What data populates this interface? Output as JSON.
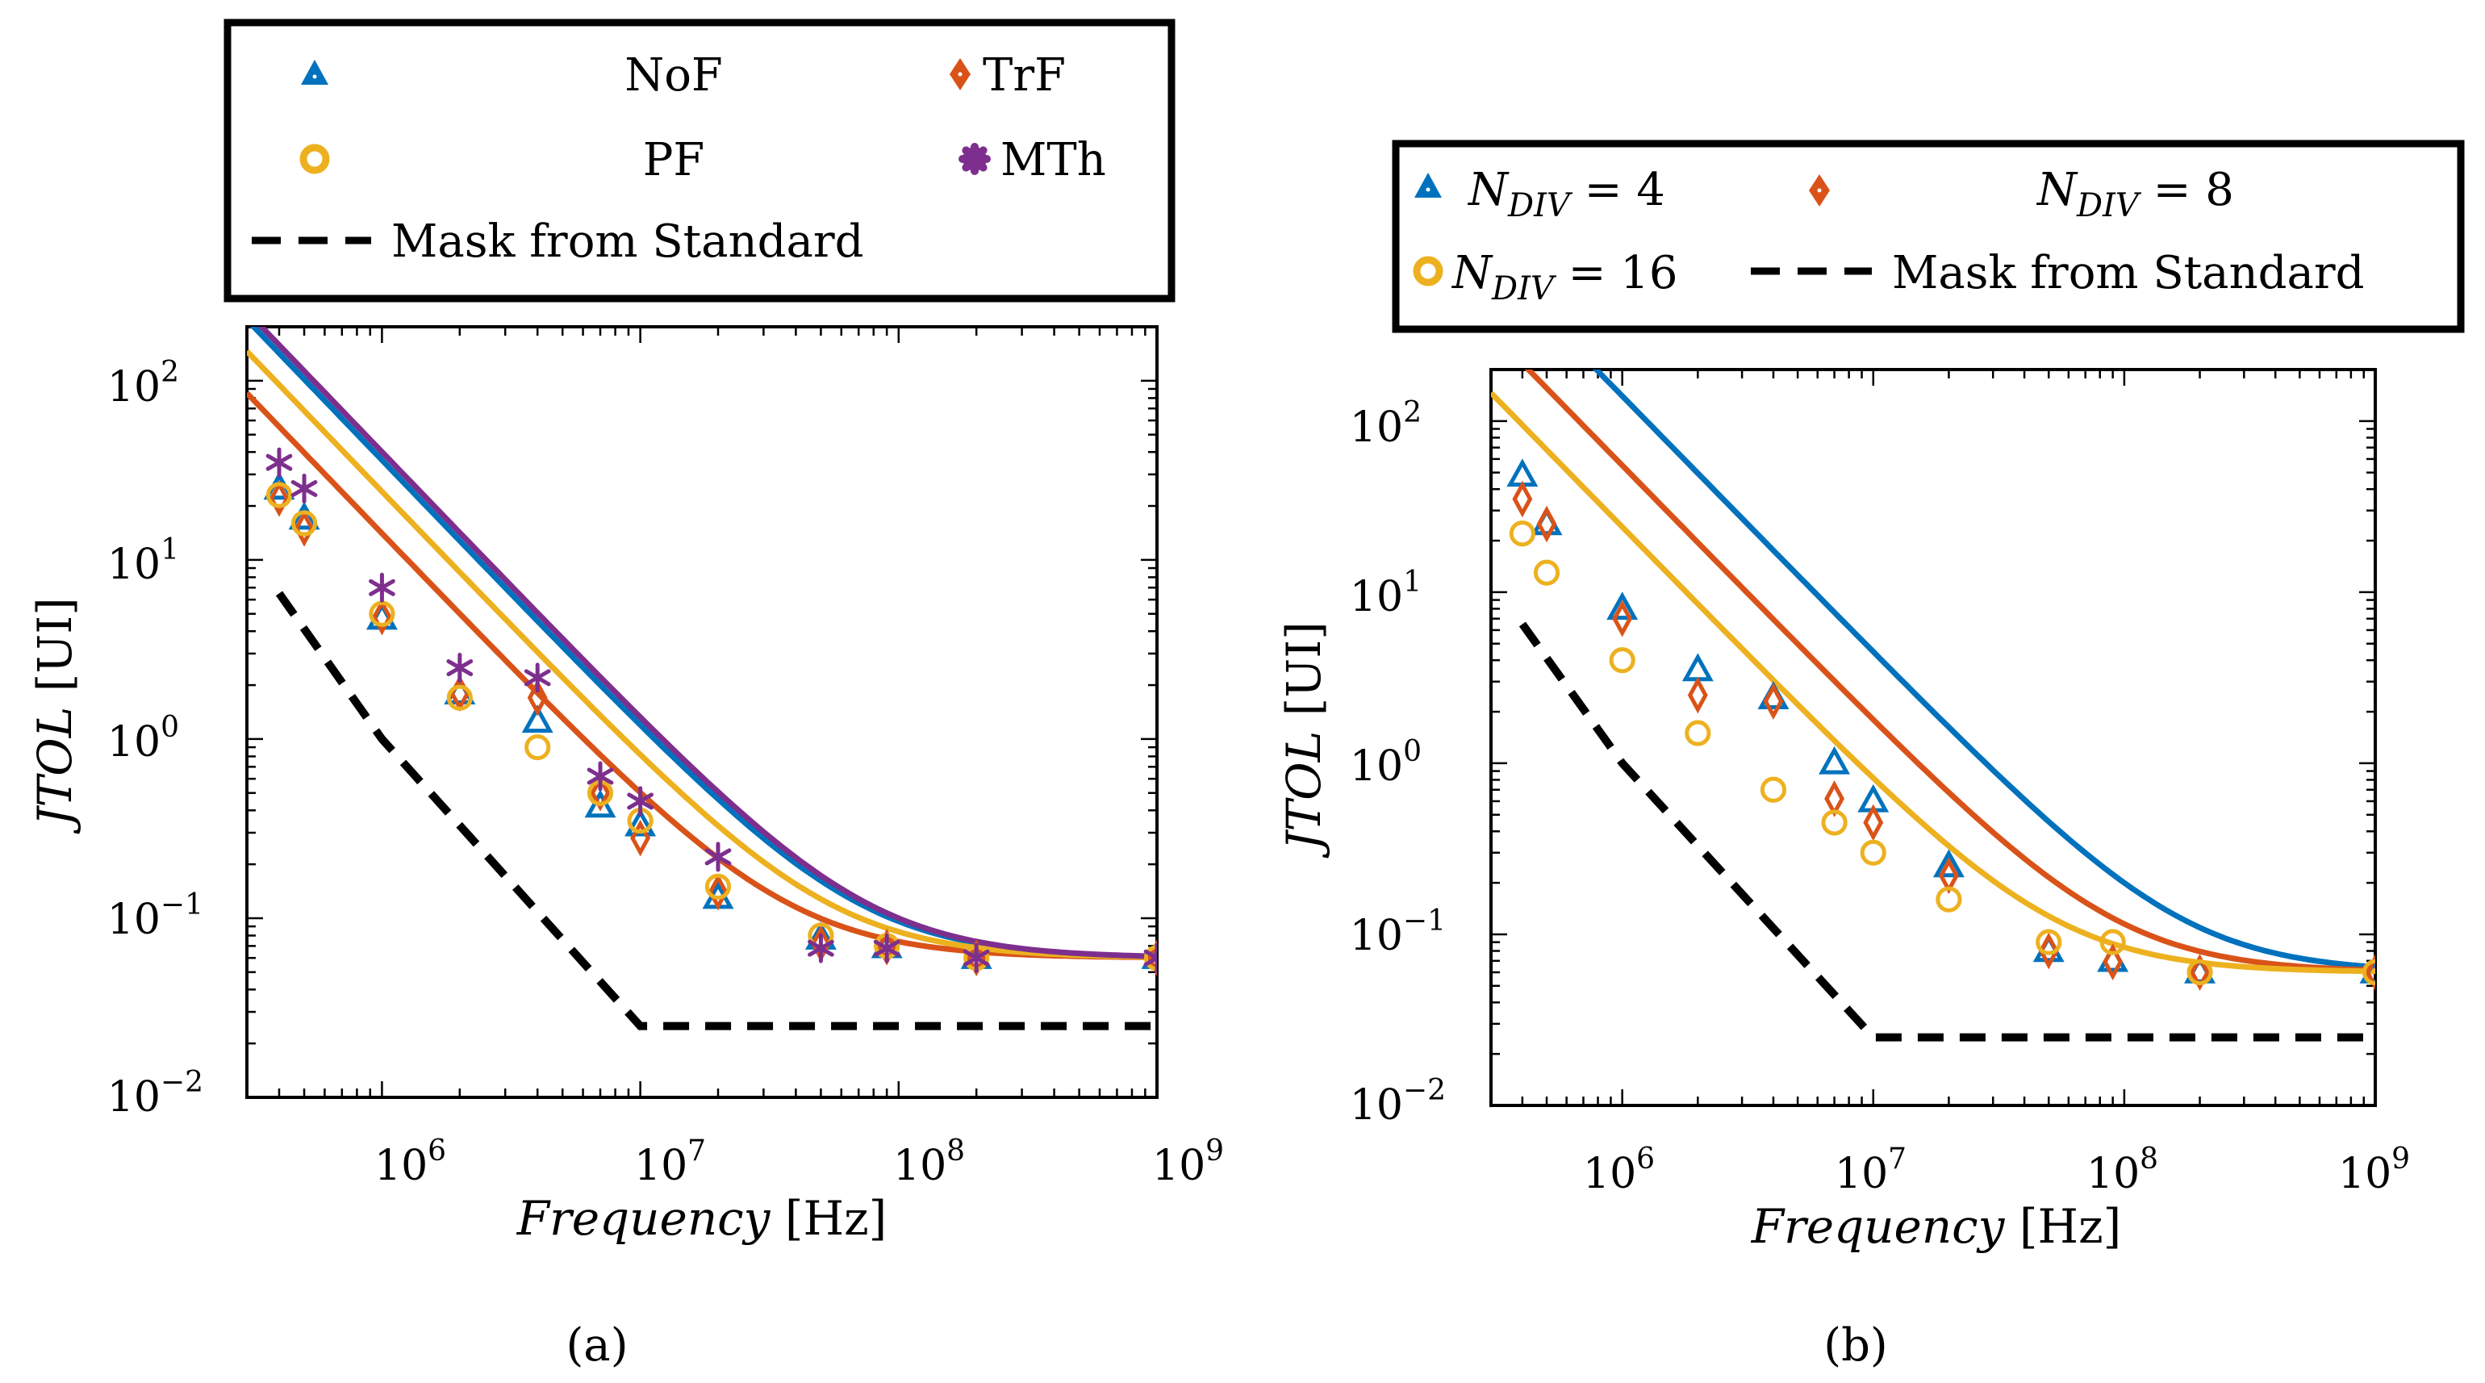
{
  "colors": {
    "blue": "#0072BD",
    "orange": "#D95319",
    "yellow": "#EDB120",
    "purple": "#7E2F8E",
    "mask": "#000000"
  },
  "chart_data": [
    {
      "id": "a",
      "type": "scatter",
      "caption": "(a)",
      "xlabel": "Frequency",
      "xunit": "[Hz]",
      "ylabel": "JTOL",
      "yunit": "[UI]",
      "xscale": "log",
      "yscale": "log",
      "xlim": [
        300000,
        1000000000
      ],
      "ylim": [
        0.01,
        200
      ],
      "xticks": [
        {
          "base": "10",
          "exp": "6"
        },
        {
          "base": "10",
          "exp": "7"
        },
        {
          "base": "10",
          "exp": "8"
        },
        {
          "base": "10",
          "exp": "9"
        }
      ],
      "yticks": [
        {
          "base": "10",
          "exp": "−2"
        },
        {
          "base": "10",
          "exp": "−1"
        },
        {
          "base": "10",
          "exp": "0"
        },
        {
          "base": "10",
          "exp": "1"
        },
        {
          "base": "10",
          "exp": "2"
        }
      ],
      "grid": false,
      "legend_position": "top-center",
      "legend": [
        {
          "label": "NoF",
          "marker": "triangle",
          "color": "#0072BD"
        },
        {
          "label": "TrF",
          "marker": "diamond",
          "color": "#D95319"
        },
        {
          "label": "PF",
          "marker": "circle",
          "color": "#EDB120"
        },
        {
          "label": "MTh",
          "marker": "star",
          "color": "#7E2F8E"
        },
        {
          "label": "Mask from Standard",
          "marker": "dashed",
          "color": "#000000"
        }
      ],
      "series": [
        {
          "name": "NoF",
          "marker": "triangle",
          "color": "#0072BD",
          "x": [
            400000,
            500000,
            1000000,
            2000000,
            4000000,
            7000000,
            10000000,
            20000000,
            50000000,
            90000000,
            200000000,
            1000000000
          ],
          "y": [
            25,
            17,
            4.7,
            1.8,
            1.25,
            0.42,
            0.33,
            0.13,
            0.077,
            0.069,
            0.06,
            0.06
          ],
          "fit": {
            "floor": 0.06,
            "A": 36
          }
        },
        {
          "name": "TrF",
          "marker": "diamond",
          "color": "#D95319",
          "x": [
            400000,
            500000,
            1000000,
            2000000,
            4000000,
            7000000,
            10000000,
            20000000,
            50000000,
            90000000,
            200000000,
            1000000000
          ],
          "y": [
            22,
            15,
            4.8,
            1.8,
            1.7,
            0.5,
            0.28,
            0.14,
            0.072,
            0.069,
            0.06,
            0.06
          ],
          "fit": {
            "floor": 0.06,
            "A": 14
          }
        },
        {
          "name": "PF",
          "marker": "circle",
          "color": "#EDB120",
          "x": [
            400000,
            500000,
            1000000,
            2000000,
            4000000,
            7000000,
            10000000,
            20000000,
            50000000,
            90000000,
            200000000,
            1000000000
          ],
          "y": [
            23,
            16,
            5,
            1.7,
            0.9,
            0.5,
            0.35,
            0.15,
            0.08,
            0.07,
            0.06,
            0.06
          ],
          "fit": {
            "floor": 0.06,
            "A": 24
          }
        },
        {
          "name": "MTh",
          "marker": "star",
          "color": "#7E2F8E",
          "x": [
            400000,
            500000,
            1000000,
            2000000,
            4000000,
            7000000,
            10000000,
            20000000,
            50000000,
            90000000,
            200000000,
            1000000000
          ],
          "y": [
            35,
            25,
            7,
            2.5,
            2.2,
            0.62,
            0.45,
            0.22,
            0.068,
            0.068,
            0.06,
            0.06
          ],
          "fit": {
            "floor": 0.06,
            "A": 40
          }
        },
        {
          "name": "Mask from Standard",
          "style": "dashed",
          "color": "#000000",
          "x": [
            400000,
            1000000,
            10000000,
            1000000000
          ],
          "y": [
            6.5,
            1,
            0.025,
            0.025
          ]
        }
      ]
    },
    {
      "id": "b",
      "type": "scatter",
      "caption": "(b)",
      "xlabel": "Frequency",
      "xunit": "[Hz]",
      "ylabel": "JTOL",
      "yunit": "[UI]",
      "xscale": "log",
      "yscale": "log",
      "xlim": [
        300000,
        1000000000
      ],
      "ylim": [
        0.01,
        200
      ],
      "xticks": [
        {
          "base": "10",
          "exp": "6"
        },
        {
          "base": "10",
          "exp": "7"
        },
        {
          "base": "10",
          "exp": "8"
        },
        {
          "base": "10",
          "exp": "9"
        }
      ],
      "yticks": [
        {
          "base": "10",
          "exp": "−2"
        },
        {
          "base": "10",
          "exp": "−1"
        },
        {
          "base": "10",
          "exp": "0"
        },
        {
          "base": "10",
          "exp": "1"
        },
        {
          "base": "10",
          "exp": "2"
        }
      ],
      "grid": false,
      "legend_position": "top-center",
      "legend": [
        {
          "label_var": "N",
          "label_sub": "DIV",
          "label_val": " = 4",
          "marker": "triangle",
          "color": "#0072BD"
        },
        {
          "label_var": "N",
          "label_sub": "DIV",
          "label_val": " = 8",
          "marker": "diamond",
          "color": "#D95319"
        },
        {
          "label_var": "N",
          "label_sub": "DIV",
          "label_val": " = 16",
          "marker": "circle",
          "color": "#EDB120"
        },
        {
          "label": "Mask from Standard",
          "marker": "dashed",
          "color": "#000000"
        }
      ],
      "series": [
        {
          "name": "N_DIV = 4",
          "marker": "triangle",
          "color": "#0072BD",
          "x": [
            400000,
            500000,
            1000000,
            2000000,
            4000000,
            7000000,
            10000000,
            20000000,
            50000000,
            90000000,
            200000000,
            1000000000
          ],
          "y": [
            48,
            25,
            8,
            3.5,
            2.4,
            1,
            0.6,
            0.25,
            0.08,
            0.07,
            0.06,
            0.06
          ],
          "fit": {
            "floor": 0.06,
            "A": 140
          }
        },
        {
          "name": "N_DIV = 8",
          "marker": "diamond",
          "color": "#D95319",
          "x": [
            400000,
            500000,
            1000000,
            2000000,
            4000000,
            7000000,
            10000000,
            20000000,
            50000000,
            90000000,
            200000000,
            1000000000
          ],
          "y": [
            35,
            25,
            7,
            2.5,
            2.3,
            0.62,
            0.45,
            0.22,
            0.08,
            0.069,
            0.06,
            0.06
          ],
          "fit": {
            "floor": 0.06,
            "A": 55
          }
        },
        {
          "name": "N_DIV = 16",
          "marker": "circle",
          "color": "#EDB120",
          "x": [
            400000,
            500000,
            1000000,
            2000000,
            4000000,
            7000000,
            10000000,
            20000000,
            50000000,
            90000000,
            200000000,
            1000000000
          ],
          "y": [
            22,
            13,
            4,
            1.5,
            0.7,
            0.45,
            0.3,
            0.16,
            0.09,
            0.09,
            0.06,
            0.06
          ],
          "fit": {
            "floor": 0.06,
            "A": 24
          }
        },
        {
          "name": "Mask from Standard",
          "style": "dashed",
          "color": "#000000",
          "x": [
            400000,
            1000000,
            10000000,
            1000000000
          ],
          "y": [
            6.5,
            1,
            0.025,
            0.025
          ]
        }
      ]
    }
  ]
}
